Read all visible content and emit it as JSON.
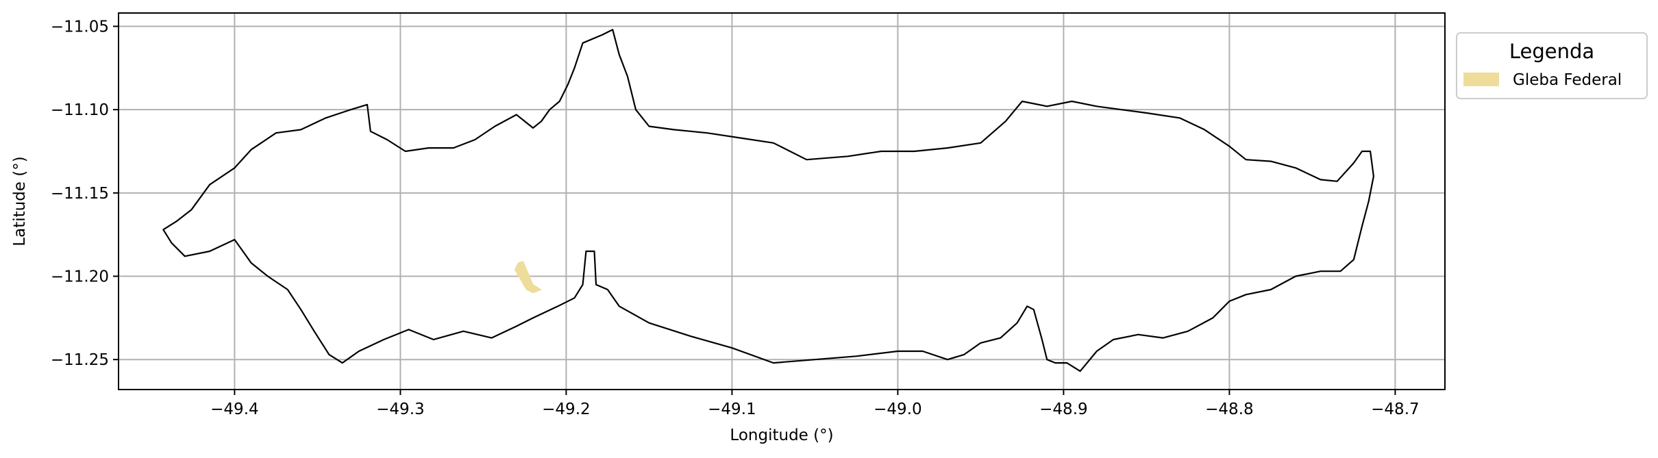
{
  "chart_data": {
    "type": "map",
    "xlabel": "Longitude (°)",
    "ylabel": "Latitude (°)",
    "xlim": [
      -49.47,
      -48.67
    ],
    "ylim": [
      -11.268,
      -11.042
    ],
    "grid": true,
    "xticks": [
      -49.4,
      -49.3,
      -49.2,
      -49.1,
      -49.0,
      -48.9,
      -48.8,
      -48.7
    ],
    "yticks": [
      -11.05,
      -11.1,
      -11.15,
      -11.2,
      -11.25
    ],
    "xtick_labels": [
      "−49.4",
      "−49.3",
      "−49.2",
      "−49.1",
      "−49.0",
      "−48.9",
      "−48.8",
      "−48.7"
    ],
    "ytick_labels": [
      "−11.05",
      "−11.10",
      "−11.15",
      "−11.20",
      "−11.25"
    ],
    "legend": {
      "title": "Legenda",
      "placement": "outside-upper-right",
      "entries": [
        {
          "label": "Gleba Federal",
          "color": "#eedc9a"
        }
      ]
    },
    "layers": [
      {
        "name": "boundary",
        "kind": "outline",
        "color": "#000000",
        "coordinates": [
          [
            -49.172,
            -11.052
          ],
          [
            -49.178,
            -11.055
          ],
          [
            -49.19,
            -11.06
          ],
          [
            -49.195,
            -11.075
          ],
          [
            -49.199,
            -11.085
          ],
          [
            -49.204,
            -11.095
          ],
          [
            -49.21,
            -11.1
          ],
          [
            -49.215,
            -11.107
          ],
          [
            -49.22,
            -11.111
          ],
          [
            -49.23,
            -11.103
          ],
          [
            -49.243,
            -11.11
          ],
          [
            -49.255,
            -11.118
          ],
          [
            -49.268,
            -11.123
          ],
          [
            -49.283,
            -11.123
          ],
          [
            -49.297,
            -11.125
          ],
          [
            -49.308,
            -11.118
          ],
          [
            -49.318,
            -11.113
          ],
          [
            -49.32,
            -11.097
          ],
          [
            -49.33,
            -11.1
          ],
          [
            -49.345,
            -11.105
          ],
          [
            -49.36,
            -11.112
          ],
          [
            -49.375,
            -11.114
          ],
          [
            -49.39,
            -11.124
          ],
          [
            -49.4,
            -11.135
          ],
          [
            -49.415,
            -11.145
          ],
          [
            -49.426,
            -11.16
          ],
          [
            -49.435,
            -11.167
          ],
          [
            -49.443,
            -11.172
          ],
          [
            -49.438,
            -11.18
          ],
          [
            -49.43,
            -11.188
          ],
          [
            -49.415,
            -11.185
          ],
          [
            -49.4,
            -11.178
          ],
          [
            -49.39,
            -11.192
          ],
          [
            -49.38,
            -11.2
          ],
          [
            -49.368,
            -11.208
          ],
          [
            -49.36,
            -11.22
          ],
          [
            -49.352,
            -11.233
          ],
          [
            -49.343,
            -11.247
          ],
          [
            -49.335,
            -11.252
          ],
          [
            -49.325,
            -11.245
          ],
          [
            -49.31,
            -11.238
          ],
          [
            -49.295,
            -11.232
          ],
          [
            -49.28,
            -11.238
          ],
          [
            -49.262,
            -11.233
          ],
          [
            -49.245,
            -11.237
          ],
          [
            -49.23,
            -11.23
          ],
          [
            -49.22,
            -11.225
          ],
          [
            -49.205,
            -11.218
          ],
          [
            -49.195,
            -11.213
          ],
          [
            -49.19,
            -11.205
          ],
          [
            -49.188,
            -11.185
          ],
          [
            -49.183,
            -11.185
          ],
          [
            -49.182,
            -11.205
          ],
          [
            -49.175,
            -11.208
          ],
          [
            -49.168,
            -11.218
          ],
          [
            -49.15,
            -11.228
          ],
          [
            -49.125,
            -11.236
          ],
          [
            -49.1,
            -11.243
          ],
          [
            -49.075,
            -11.252
          ],
          [
            -49.05,
            -11.25
          ],
          [
            -49.025,
            -11.248
          ],
          [
            -49.0,
            -11.245
          ],
          [
            -48.985,
            -11.245
          ],
          [
            -48.97,
            -11.25
          ],
          [
            -48.96,
            -11.247
          ],
          [
            -48.95,
            -11.24
          ],
          [
            -48.938,
            -11.237
          ],
          [
            -48.928,
            -11.228
          ],
          [
            -48.922,
            -11.218
          ],
          [
            -48.918,
            -11.22
          ],
          [
            -48.913,
            -11.238
          ],
          [
            -48.91,
            -11.25
          ],
          [
            -48.905,
            -11.252
          ],
          [
            -48.898,
            -11.252
          ],
          [
            -48.89,
            -11.257
          ],
          [
            -48.88,
            -11.245
          ],
          [
            -48.87,
            -11.238
          ],
          [
            -48.855,
            -11.235
          ],
          [
            -48.84,
            -11.237
          ],
          [
            -48.825,
            -11.233
          ],
          [
            -48.81,
            -11.225
          ],
          [
            -48.8,
            -11.215
          ],
          [
            -48.79,
            -11.211
          ],
          [
            -48.775,
            -11.208
          ],
          [
            -48.76,
            -11.2
          ],
          [
            -48.745,
            -11.197
          ],
          [
            -48.733,
            -11.197
          ],
          [
            -48.725,
            -11.19
          ],
          [
            -48.72,
            -11.17
          ],
          [
            -48.716,
            -11.155
          ],
          [
            -48.713,
            -11.14
          ],
          [
            -48.715,
            -11.125
          ],
          [
            -48.72,
            -11.125
          ],
          [
            -48.725,
            -11.132
          ],
          [
            -48.735,
            -11.143
          ],
          [
            -48.745,
            -11.142
          ],
          [
            -48.76,
            -11.135
          ],
          [
            -48.775,
            -11.131
          ],
          [
            -48.79,
            -11.13
          ],
          [
            -48.8,
            -11.122
          ],
          [
            -48.815,
            -11.112
          ],
          [
            -48.83,
            -11.105
          ],
          [
            -48.85,
            -11.102
          ],
          [
            -48.865,
            -11.1
          ],
          [
            -48.88,
            -11.098
          ],
          [
            -48.895,
            -11.095
          ],
          [
            -48.91,
            -11.098
          ],
          [
            -48.925,
            -11.095
          ],
          [
            -48.935,
            -11.107
          ],
          [
            -48.95,
            -11.12
          ],
          [
            -48.97,
            -11.123
          ],
          [
            -48.99,
            -11.125
          ],
          [
            -49.01,
            -11.125
          ],
          [
            -49.03,
            -11.128
          ],
          [
            -49.055,
            -11.13
          ],
          [
            -49.075,
            -11.12
          ],
          [
            -49.095,
            -11.117
          ],
          [
            -49.115,
            -11.114
          ],
          [
            -49.135,
            -11.112
          ],
          [
            -49.15,
            -11.11
          ],
          [
            -49.158,
            -11.1
          ],
          [
            -49.163,
            -11.08
          ],
          [
            -49.168,
            -11.067
          ],
          [
            -49.172,
            -11.052
          ]
        ]
      },
      {
        "name": "Gleba Federal",
        "kind": "fill",
        "color": "#eedc9a",
        "coordinates": [
          [
            -49.229,
            -11.192
          ],
          [
            -49.226,
            -11.191
          ],
          [
            -49.22,
            -11.205
          ],
          [
            -49.215,
            -11.208
          ],
          [
            -49.22,
            -11.21
          ],
          [
            -49.224,
            -11.208
          ],
          [
            -49.231,
            -11.196
          ],
          [
            -49.229,
            -11.192
          ]
        ]
      }
    ]
  }
}
